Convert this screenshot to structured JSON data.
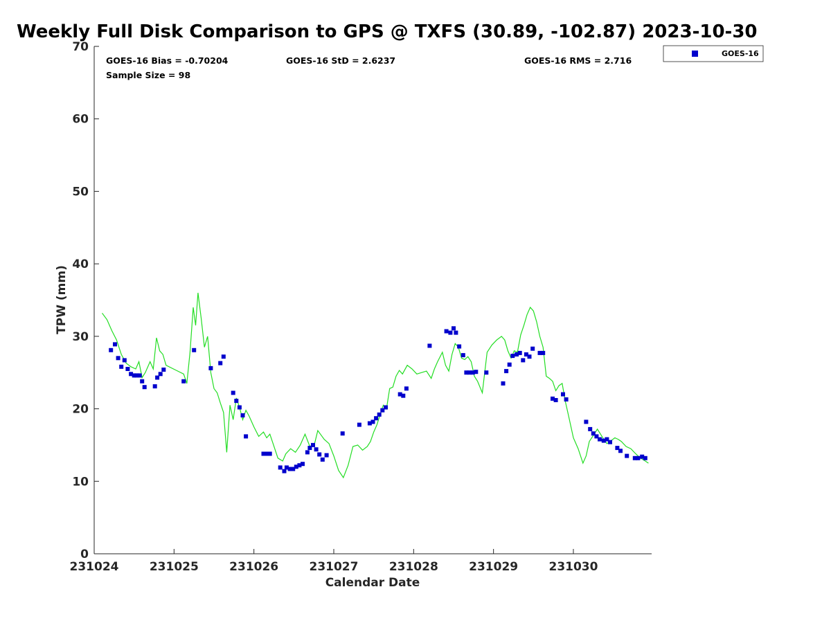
{
  "chart_data": {
    "type": "scatter",
    "title": "Weekly Full Disk Comparison to GPS @ TXFS (30.89, -102.87) 2023-10-30",
    "xlabel": "Calendar Date",
    "ylabel": "TPW (mm)",
    "xlim": [
      231024,
      231030.98
    ],
    "ylim": [
      0,
      70
    ],
    "x_tick_values": [
      231024,
      231025,
      231026,
      231027,
      231028,
      231029,
      231030
    ],
    "x_tick_labels": [
      "231024",
      "231025",
      "231026",
      "231027",
      "231028",
      "231029",
      "231030"
    ],
    "y_tick_values": [
      0,
      10,
      20,
      30,
      40,
      50,
      60,
      70
    ],
    "y_tick_labels": [
      "0",
      "10",
      "20",
      "30",
      "40",
      "50",
      "60",
      "70"
    ],
    "stats": {
      "bias": "GOES-16 Bias = -0.70204",
      "std": "GOES-16 StD = 2.6237",
      "rms": "GOES-16 RMS = 2.716",
      "sample": "Sample Size = 98"
    },
    "legend": {
      "position": "top-right-outside",
      "entries": [
        {
          "label": "GOES-16",
          "color": "#0000cc",
          "marker": "square"
        }
      ]
    },
    "series": [
      {
        "name": "GOES-16",
        "color": "#0000cc",
        "marker": "square",
        "x": [
          231024.21,
          231024.26,
          231024.3,
          231024.34,
          231024.38,
          231024.42,
          231024.46,
          231024.5,
          231024.53,
          231024.57,
          231024.6,
          231024.63,
          231024.76,
          231024.79,
          231024.83,
          231024.87,
          231025.12,
          231025.25,
          231025.46,
          231025.58,
          231025.62,
          231025.74,
          231025.78,
          231025.82,
          231025.86,
          231025.9,
          231026.12,
          231026.16,
          231026.2,
          231026.33,
          231026.38,
          231026.41,
          231026.45,
          231026.49,
          231026.53,
          231026.57,
          231026.61,
          231026.67,
          231026.7,
          231026.74,
          231026.78,
          231026.82,
          231026.86,
          231026.91,
          231027.11,
          231027.32,
          231027.45,
          231027.49,
          231027.53,
          231027.57,
          231027.61,
          231027.65,
          231027.83,
          231027.87,
          231027.91,
          231028.2,
          231028.41,
          231028.46,
          231028.5,
          231028.53,
          231028.57,
          231028.62,
          231028.66,
          231028.7,
          231028.74,
          231028.78,
          231028.91,
          231029.12,
          231029.16,
          231029.2,
          231029.24,
          231029.29,
          231029.33,
          231029.37,
          231029.41,
          231029.45,
          231029.49,
          231029.58,
          231029.62,
          231029.74,
          231029.78,
          231029.87,
          231029.91,
          231030.16,
          231030.21,
          231030.25,
          231030.29,
          231030.33,
          231030.38,
          231030.42,
          231030.46,
          231030.55,
          231030.59,
          231030.67,
          231030.77,
          231030.81,
          231030.86,
          231030.9
        ],
        "y": [
          28.1,
          28.9,
          27.0,
          25.8,
          26.7,
          25.5,
          24.8,
          24.6,
          24.6,
          24.6,
          23.8,
          23.0,
          23.1,
          24.3,
          24.8,
          25.4,
          23.8,
          28.1,
          25.6,
          26.3,
          27.2,
          22.2,
          21.1,
          20.2,
          19.1,
          16.2,
          13.8,
          13.8,
          13.8,
          11.9,
          11.4,
          11.9,
          11.7,
          11.7,
          12.0,
          12.2,
          12.4,
          14.0,
          14.6,
          15.0,
          14.4,
          13.7,
          13.0,
          13.6,
          16.6,
          17.8,
          18.0,
          18.2,
          18.7,
          19.2,
          19.8,
          20.2,
          22.0,
          21.8,
          22.8,
          28.7,
          30.7,
          30.5,
          31.1,
          30.5,
          28.6,
          27.4,
          25.0,
          25.0,
          25.0,
          25.1,
          25.0,
          23.5,
          25.2,
          26.1,
          27.3,
          27.5,
          27.7,
          26.7,
          27.5,
          27.2,
          28.3,
          27.7,
          27.7,
          21.4,
          21.2,
          22.0,
          21.3,
          18.2,
          17.2,
          16.6,
          16.2,
          15.8,
          15.6,
          15.8,
          15.4,
          14.6,
          14.2,
          13.5,
          13.2,
          13.2,
          13.4,
          13.2
        ]
      },
      {
        "name": "GPS",
        "color": "#22dd22",
        "marker": "line",
        "x": [
          231024.1,
          231024.16,
          231024.22,
          231024.28,
          231024.34,
          231024.4,
          231024.46,
          231024.52,
          231024.56,
          231024.6,
          231024.64,
          231024.7,
          231024.74,
          231024.78,
          231024.82,
          231024.86,
          231024.9,
          231025.12,
          231025.16,
          231025.2,
          231025.24,
          231025.27,
          231025.3,
          231025.34,
          231025.38,
          231025.42,
          231025.46,
          231025.5,
          231025.54,
          231025.58,
          231025.62,
          231025.66,
          231025.7,
          231025.74,
          231025.78,
          231025.82,
          231025.86,
          231025.9,
          231025.94,
          231026.0,
          231026.06,
          231026.12,
          231026.16,
          231026.2,
          231026.24,
          231026.3,
          231026.36,
          231026.4,
          231026.46,
          231026.52,
          231026.58,
          231026.64,
          231026.7,
          231026.76,
          231026.8,
          231026.84,
          231026.88,
          231026.94,
          231027.0,
          231027.06,
          231027.12,
          231027.18,
          231027.24,
          231027.3,
          231027.36,
          231027.42,
          231027.46,
          231027.5,
          231027.54,
          231027.58,
          231027.62,
          231027.66,
          231027.7,
          231027.74,
          231027.78,
          231027.82,
          231027.86,
          231027.92,
          231027.98,
          231028.04,
          231028.1,
          231028.16,
          231028.22,
          231028.26,
          231028.3,
          231028.36,
          231028.4,
          231028.44,
          231028.48,
          231028.52,
          231028.56,
          231028.6,
          231028.64,
          231028.68,
          231028.72,
          231028.76,
          231028.8,
          231028.86,
          231028.92,
          231028.98,
          231029.04,
          231029.1,
          231029.14,
          231029.18,
          231029.22,
          231029.26,
          231029.3,
          231029.34,
          231029.38,
          231029.42,
          231029.46,
          231029.5,
          231029.54,
          231029.58,
          231029.62,
          231029.66,
          231029.7,
          231029.74,
          231029.78,
          231029.82,
          231029.86,
          231029.9,
          231029.94,
          231030.0,
          231030.06,
          231030.12,
          231030.16,
          231030.2,
          231030.26,
          231030.3,
          231030.34,
          231030.38,
          231030.42,
          231030.46,
          231030.52,
          231030.56,
          231030.6,
          231030.66,
          231030.72,
          231030.78,
          231030.84,
          231030.9,
          231030.94
        ],
        "y": [
          33.2,
          32.3,
          30.8,
          29.5,
          27.5,
          26.3,
          25.8,
          25.5,
          26.5,
          24.3,
          25.0,
          26.5,
          25.5,
          29.8,
          28.0,
          27.5,
          26.0,
          24.8,
          23.5,
          27.8,
          34.0,
          31.5,
          36.0,
          32.5,
          28.5,
          30.0,
          25.0,
          22.8,
          22.2,
          20.8,
          19.5,
          14.0,
          20.5,
          18.5,
          21.5,
          20.2,
          18.5,
          19.8,
          19.0,
          17.5,
          16.2,
          16.8,
          16.0,
          16.5,
          15.2,
          13.2,
          12.8,
          13.8,
          14.5,
          14.0,
          15.0,
          16.5,
          14.8,
          15.2,
          17.0,
          16.4,
          15.8,
          15.2,
          13.5,
          11.5,
          10.5,
          12.2,
          14.8,
          15.0,
          14.3,
          14.8,
          15.5,
          16.8,
          17.8,
          19.2,
          20.5,
          20.0,
          22.8,
          23.0,
          24.5,
          25.3,
          24.8,
          26.0,
          25.5,
          24.8,
          25.0,
          25.2,
          24.2,
          25.5,
          26.5,
          27.8,
          26.0,
          25.2,
          27.5,
          29.0,
          28.5,
          27.0,
          26.8,
          27.2,
          26.5,
          24.5,
          23.8,
          22.2,
          27.8,
          28.8,
          29.5,
          30.0,
          29.5,
          28.0,
          27.0,
          28.0,
          27.8,
          30.2,
          31.5,
          33.0,
          34.0,
          33.5,
          32.0,
          30.0,
          28.5,
          24.5,
          24.2,
          23.8,
          22.5,
          23.2,
          23.5,
          21.0,
          19.0,
          16.0,
          14.5,
          12.5,
          13.5,
          15.5,
          16.5,
          17.2,
          16.5,
          15.8,
          15.2,
          15.5,
          16.0,
          15.8,
          15.5,
          14.8,
          14.5,
          13.8,
          13.2,
          12.8,
          12.5
        ]
      }
    ]
  }
}
